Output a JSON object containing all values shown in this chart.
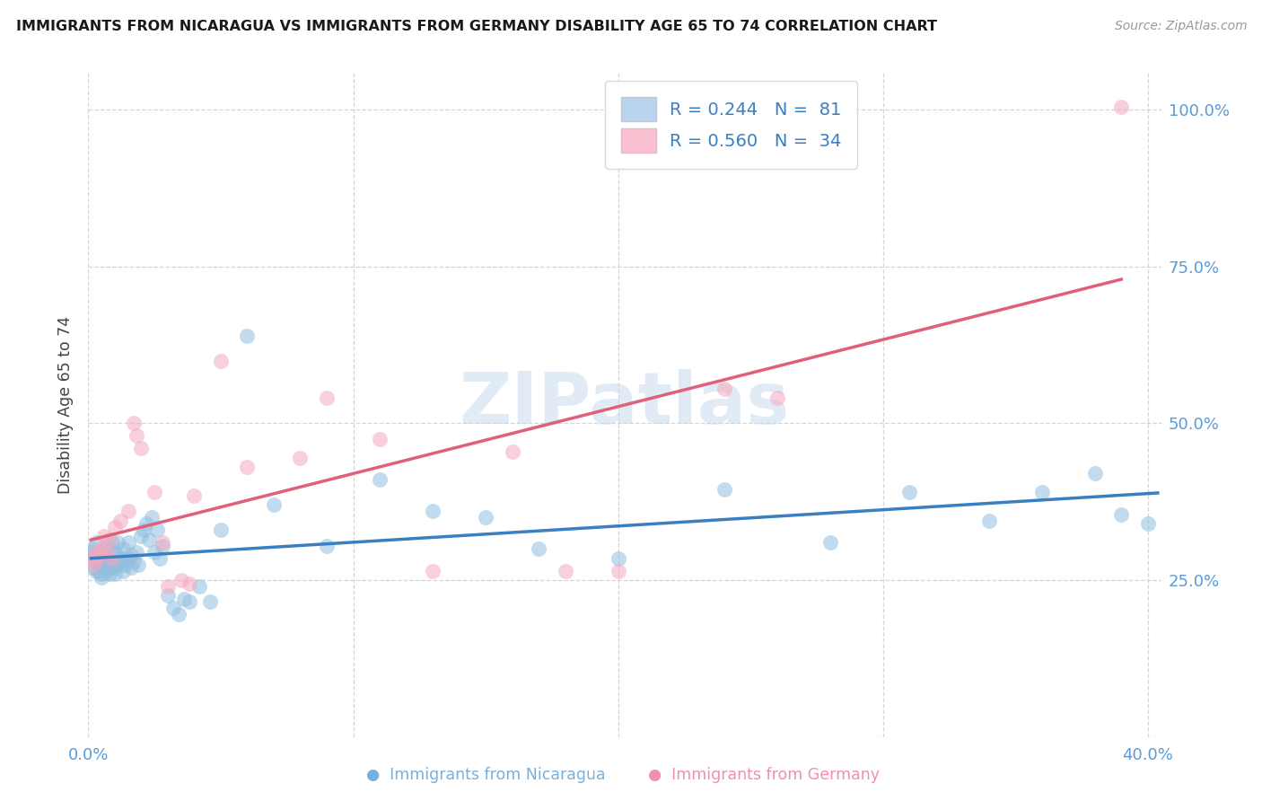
{
  "title": "IMMIGRANTS FROM NICARAGUA VS IMMIGRANTS FROM GERMANY DISABILITY AGE 65 TO 74 CORRELATION CHART",
  "source": "Source: ZipAtlas.com",
  "ylabel": "Disability Age 65 to 74",
  "xmin": 0.0,
  "xmax": 0.405,
  "ymin": 0.0,
  "ymax": 1.06,
  "nicaragua_R": 0.244,
  "nicaragua_N": 81,
  "germany_R": 0.56,
  "germany_N": 34,
  "blue_scatter_color": "#92bfe0",
  "pink_scatter_color": "#f4a8c0",
  "blue_line_color": "#3a7fc1",
  "pink_line_color": "#e0607a",
  "watermark_text": "ZIPatlas",
  "nicaragua_x": [
    0.001,
    0.001,
    0.002,
    0.002,
    0.002,
    0.003,
    0.003,
    0.003,
    0.003,
    0.004,
    0.004,
    0.004,
    0.004,
    0.005,
    0.005,
    0.005,
    0.005,
    0.006,
    0.006,
    0.006,
    0.007,
    0.007,
    0.007,
    0.007,
    0.008,
    0.008,
    0.008,
    0.009,
    0.009,
    0.009,
    0.01,
    0.01,
    0.01,
    0.011,
    0.011,
    0.012,
    0.012,
    0.013,
    0.013,
    0.014,
    0.014,
    0.015,
    0.015,
    0.016,
    0.016,
    0.017,
    0.018,
    0.019,
    0.02,
    0.021,
    0.022,
    0.023,
    0.024,
    0.025,
    0.026,
    0.027,
    0.028,
    0.03,
    0.032,
    0.034,
    0.036,
    0.038,
    0.042,
    0.046,
    0.05,
    0.06,
    0.07,
    0.09,
    0.11,
    0.13,
    0.15,
    0.17,
    0.2,
    0.24,
    0.28,
    0.31,
    0.34,
    0.36,
    0.38,
    0.39,
    0.4
  ],
  "nicaragua_y": [
    0.285,
    0.295,
    0.27,
    0.29,
    0.3,
    0.265,
    0.28,
    0.295,
    0.31,
    0.275,
    0.285,
    0.295,
    0.265,
    0.26,
    0.275,
    0.29,
    0.255,
    0.285,
    0.27,
    0.28,
    0.295,
    0.265,
    0.275,
    0.305,
    0.28,
    0.27,
    0.26,
    0.31,
    0.285,
    0.275,
    0.295,
    0.27,
    0.26,
    0.29,
    0.31,
    0.275,
    0.285,
    0.265,
    0.3,
    0.28,
    0.275,
    0.285,
    0.31,
    0.29,
    0.27,
    0.28,
    0.295,
    0.275,
    0.32,
    0.33,
    0.34,
    0.315,
    0.35,
    0.295,
    0.33,
    0.285,
    0.305,
    0.225,
    0.205,
    0.195,
    0.22,
    0.215,
    0.24,
    0.215,
    0.33,
    0.64,
    0.37,
    0.305,
    0.41,
    0.36,
    0.35,
    0.3,
    0.285,
    0.395,
    0.31,
    0.39,
    0.345,
    0.39,
    0.42,
    0.355,
    0.34
  ],
  "germany_x": [
    0.001,
    0.002,
    0.003,
    0.003,
    0.004,
    0.005,
    0.006,
    0.007,
    0.008,
    0.009,
    0.01,
    0.012,
    0.015,
    0.017,
    0.018,
    0.02,
    0.025,
    0.028,
    0.03,
    0.035,
    0.038,
    0.04,
    0.05,
    0.06,
    0.08,
    0.09,
    0.11,
    0.13,
    0.16,
    0.18,
    0.2,
    0.24,
    0.26,
    0.39
  ],
  "germany_y": [
    0.285,
    0.275,
    0.285,
    0.295,
    0.29,
    0.3,
    0.32,
    0.295,
    0.315,
    0.285,
    0.335,
    0.345,
    0.36,
    0.5,
    0.48,
    0.46,
    0.39,
    0.31,
    0.24,
    0.25,
    0.245,
    0.385,
    0.6,
    0.43,
    0.445,
    0.54,
    0.475,
    0.265,
    0.455,
    0.265,
    0.265,
    0.555,
    0.54,
    1.005
  ]
}
